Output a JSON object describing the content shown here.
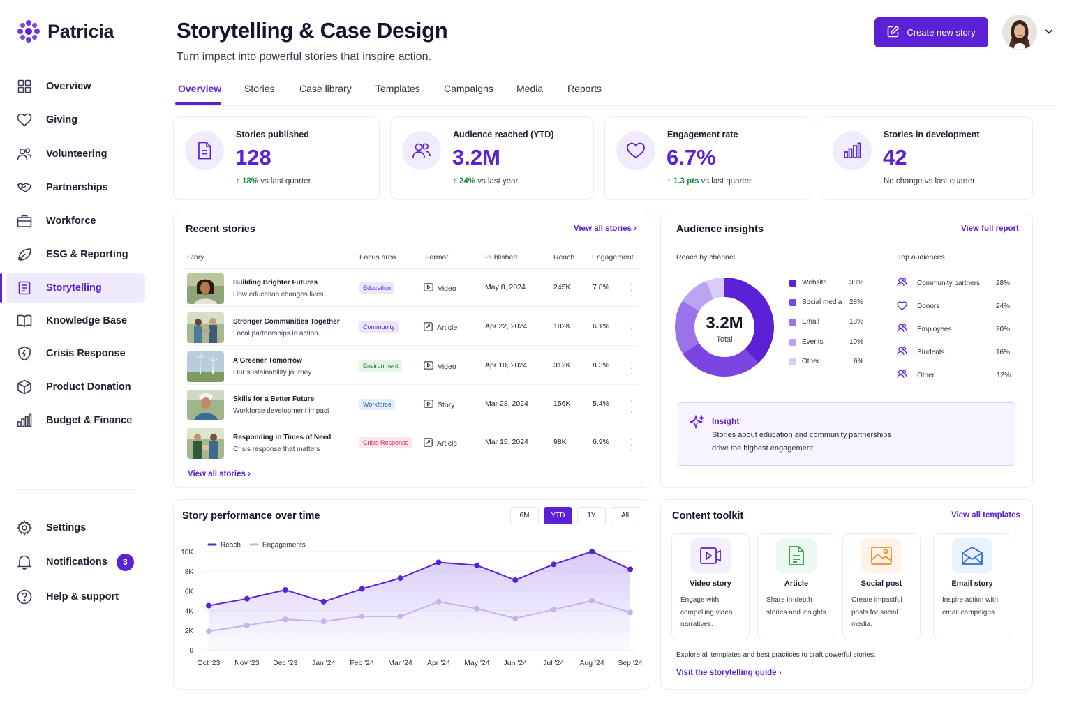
{
  "app": {
    "brand": "Patricia"
  },
  "sidebar": {
    "items": [
      {
        "label": "Overview",
        "icon": "grid-icon"
      },
      {
        "label": "Giving",
        "icon": "heart-icon"
      },
      {
        "label": "Volunteering",
        "icon": "users-icon"
      },
      {
        "label": "Partnerships",
        "icon": "handshake-icon"
      },
      {
        "label": "Workforce",
        "icon": "briefcase-icon"
      },
      {
        "label": "ESG & Reporting",
        "icon": "leaf-icon"
      },
      {
        "label": "Storytelling",
        "icon": "story-icon"
      },
      {
        "label": "Knowledge Base",
        "icon": "book-icon"
      },
      {
        "label": "Crisis Response",
        "icon": "shield-icon"
      },
      {
        "label": "Product Donation",
        "icon": "box-icon"
      },
      {
        "label": "Budget & Finance",
        "icon": "bar-chart-icon"
      }
    ],
    "active": "Storytelling",
    "bottom": [
      {
        "label": "Settings",
        "icon": "gear-icon"
      },
      {
        "label": "Notifications",
        "icon": "bell-icon",
        "badge": "3"
      },
      {
        "label": "Help & support",
        "icon": "help-icon"
      }
    ]
  },
  "header": {
    "title": "Storytelling & Case Design",
    "subtitle": "Turn impact into powerful stories that inspire action.",
    "create_label": "Create new story"
  },
  "tabs": [
    "Overview",
    "Stories",
    "Case library",
    "Templates",
    "Campaigns",
    "Media",
    "Reports"
  ],
  "kpis": [
    {
      "label": "Stories published",
      "value": "128",
      "delta": "18%",
      "delta_text": "vs last quarter",
      "icon": "document-icon"
    },
    {
      "label": "Audience reached (YTD)",
      "value": "3.2M",
      "delta": "24%",
      "delta_text": "vs last year",
      "icon": "users-icon"
    },
    {
      "label": "Engagement rate",
      "value": "6.7%",
      "delta": "1.3 pts",
      "delta_text": "vs last quarter",
      "icon": "heart-icon"
    },
    {
      "label": "Stories in development",
      "value": "42",
      "delta": "",
      "delta_text": "No change vs last quarter",
      "icon": "bar-chart-icon"
    }
  ],
  "recent": {
    "title": "Recent stories",
    "view_all": "View all stories",
    "columns": [
      "Story",
      "Focus area",
      "Format",
      "Published",
      "Reach",
      "Engagement"
    ],
    "rows": [
      {
        "title": "Building Brighter Futures",
        "sub": "How education changes lives",
        "area": "Education",
        "format": "Video",
        "published": "May 8, 2024",
        "reach": "245K",
        "engagement": "7.8%"
      },
      {
        "title": "Stronger Communities Together",
        "sub": "Local partnerships in action",
        "area": "Community",
        "format": "Article",
        "published": "Apr 22, 2024",
        "reach": "182K",
        "engagement": "6.1%"
      },
      {
        "title": "A Greener Tomorrow",
        "sub": "Our sustainability journey",
        "area": "Environment",
        "format": "Video",
        "published": "Apr 10, 2024",
        "reach": "312K",
        "engagement": "8.3%"
      },
      {
        "title": "Skills for a Better Future",
        "sub": "Workforce development impact",
        "area": "Workforce",
        "format": "Story",
        "published": "Mar 28, 2024",
        "reach": "156K",
        "engagement": "5.4%"
      },
      {
        "title": "Responding in Times of Need",
        "sub": "Crisis response that matters",
        "area": "Crisis Response",
        "format": "Article",
        "published": "Mar 15, 2024",
        "reach": "98K",
        "engagement": "6.9%"
      }
    ],
    "footer_link": "View all stories"
  },
  "insights": {
    "title": "Audience insights",
    "link": "View full report",
    "reach_label": "Reach by channel",
    "donut_value": "3.2M",
    "donut_label": "Total",
    "channels": [
      {
        "name": "Website",
        "pct": "38%",
        "value": 38,
        "color": "#5b21d6"
      },
      {
        "name": "Social media",
        "pct": "28%",
        "value": 28,
        "color": "#7a45e0"
      },
      {
        "name": "Email",
        "pct": "18%",
        "value": 18,
        "color": "#9a73ea"
      },
      {
        "name": "Events",
        "pct": "10%",
        "value": 10,
        "color": "#bba2f2"
      },
      {
        "name": "Other",
        "pct": "6%",
        "value": 6,
        "color": "#d9ccf8"
      }
    ],
    "top_label": "Top audiences",
    "audiences": [
      {
        "name": "Community partners",
        "pct": "28%",
        "icon": "users-icon"
      },
      {
        "name": "Donors",
        "pct": "24%",
        "icon": "heart-icon"
      },
      {
        "name": "Employees",
        "pct": "20%",
        "icon": "users-icon"
      },
      {
        "name": "Students",
        "pct": "16%",
        "icon": "users-icon"
      },
      {
        "name": "Other",
        "pct": "12%",
        "icon": "users-icon"
      }
    ],
    "insight_title": "Insight",
    "insight_line1": "Stories about education and community partnerships",
    "insight_line2": "drive the highest engagement."
  },
  "performance": {
    "title": "Story performance over time",
    "ranges": [
      "6M",
      "YTD",
      "1Y",
      "All"
    ],
    "active_range": "YTD"
  },
  "chart_data": {
    "type": "line",
    "x": [
      "Oct '23",
      "Nov '23",
      "Dec '23",
      "Jan '24",
      "Feb '24",
      "Mar '24",
      "Apr '24",
      "May '24",
      "Jun '24",
      "Jul '24",
      "Aug '24",
      "Sep '24"
    ],
    "series": [
      {
        "name": "Reach",
        "values": [
          4500,
          5200,
          6100,
          4900,
          6200,
          7300,
          8900,
          8600,
          7100,
          8700,
          10000,
          8200
        ],
        "color": "#5b21d6"
      },
      {
        "name": "Engagements",
        "values": [
          1900,
          2500,
          3100,
          2900,
          3400,
          3400,
          4900,
          4200,
          3200,
          4100,
          5000,
          3800
        ],
        "color": "#c4b2f1"
      }
    ],
    "yticks": [
      "0",
      "2K",
      "4K",
      "6K",
      "8K",
      "10K"
    ],
    "ylim": [
      0,
      10000
    ],
    "legend": "top-left"
  },
  "toolkit": {
    "title": "Content toolkit",
    "link": "View all templates",
    "items": [
      {
        "title": "Video story",
        "desc": "Engage with compelling video narratives.",
        "icon": "video-icon"
      },
      {
        "title": "Article",
        "desc": "Share in-depth stories and insights.",
        "icon": "article-icon"
      },
      {
        "title": "Social post",
        "desc": "Create impactful posts for social media.",
        "icon": "image-icon"
      },
      {
        "title": "Email story",
        "desc": "Inspire action with email campaigns.",
        "icon": "mail-icon"
      }
    ],
    "footer_text": "Explore all templates and best practices to craft powerful stories.",
    "guide_link": "Visit the storytelling guide"
  }
}
